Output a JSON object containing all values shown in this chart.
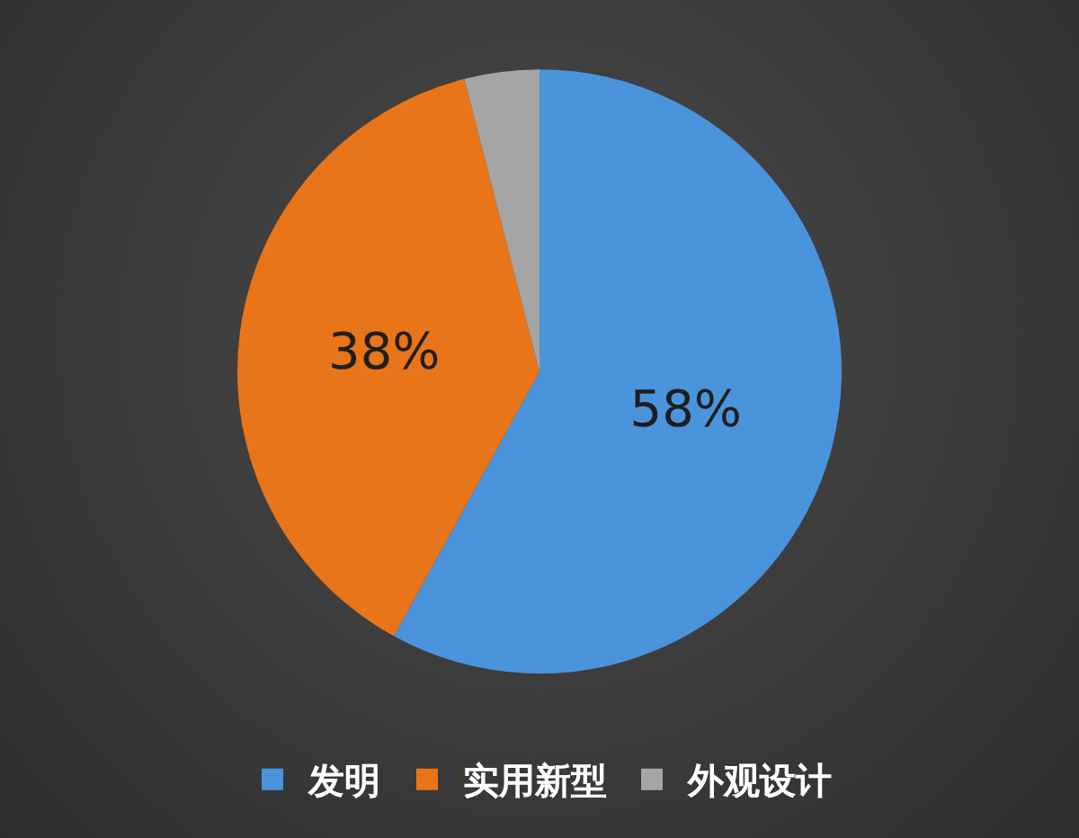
{
  "chart_data": {
    "type": "pie",
    "categories": [
      "发明",
      "实用新型",
      "外观设计"
    ],
    "values": [
      58,
      38,
      4
    ],
    "colors": [
      "#4a94dc",
      "#e8751a",
      "#a5a5a5"
    ],
    "value_labels": [
      "58%",
      "38%",
      null
    ],
    "legend": "bottom"
  }
}
